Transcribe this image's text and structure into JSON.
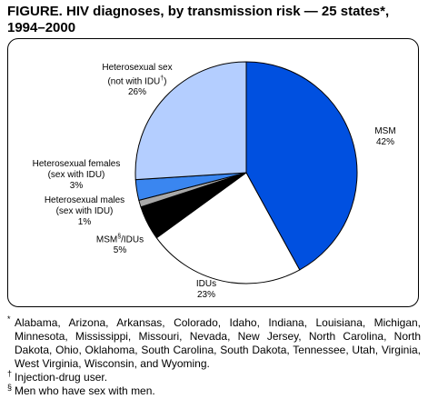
{
  "title": "FIGURE. HIV diagnoses, by transmission risk — 25 states*, 1994–2000",
  "chart_data": {
    "type": "pie",
    "title": "FIGURE. HIV diagnoses, by transmission risk — 25 states*, 1994–2000",
    "slices": [
      {
        "label": "MSM",
        "value": 42,
        "pct": "42%",
        "color": "#0050e0"
      },
      {
        "label": "IDUs",
        "value": 23,
        "pct": "23%",
        "color": "#ffffff"
      },
      {
        "label": "MSM§/IDUs",
        "value": 5,
        "pct": "5%",
        "color": "#000000"
      },
      {
        "label": "Heterosexual males (sex with IDU)",
        "value": 1,
        "pct": "1%",
        "color": "#a8a8a8"
      },
      {
        "label": "Heterosexual females (sex with IDU)",
        "value": 3,
        "pct": "3%",
        "color": "#3a86f0"
      },
      {
        "label": "Heterosexual sex (not with IDU†)",
        "value": 26,
        "pct": "26%",
        "color": "#b4ceff"
      }
    ],
    "labels": {
      "msm": {
        "line1": "MSM",
        "pct": "42%"
      },
      "idu": {
        "line1": "IDUs",
        "pct": "23%"
      },
      "msmidu": {
        "line1a": "MSM",
        "sup": "§",
        "line1b": "/IDUs",
        "pct": "5%"
      },
      "hetm": {
        "line1": "Heterosexual males",
        "line2": "(sex with IDU)",
        "pct": "1%"
      },
      "hetf": {
        "line1": "Heterosexual females",
        "line2": "(sex with IDU)",
        "pct": "3%"
      },
      "hets": {
        "line1": "Heterosexual sex",
        "line2a": "(not with IDU",
        "sup": "†",
        "line2b": ")",
        "pct": "26%"
      }
    }
  },
  "footnotes": [
    {
      "mark": "*",
      "text": "Alabama, Arizona, Arkansas, Colorado, Idaho, Indiana, Louisiana, Michigan, Minnesota, Mississippi, Missouri, Nevada, New Jersey, North Carolina, North Dakota, Ohio, Oklahoma, South Carolina, South Dakota, Tennessee, Utah, Virginia, West Virginia, Wisconsin, and Wyoming."
    },
    {
      "mark": "†",
      "text": "Injection-drug user."
    },
    {
      "mark": "§",
      "text": "Men who have sex with men."
    }
  ]
}
